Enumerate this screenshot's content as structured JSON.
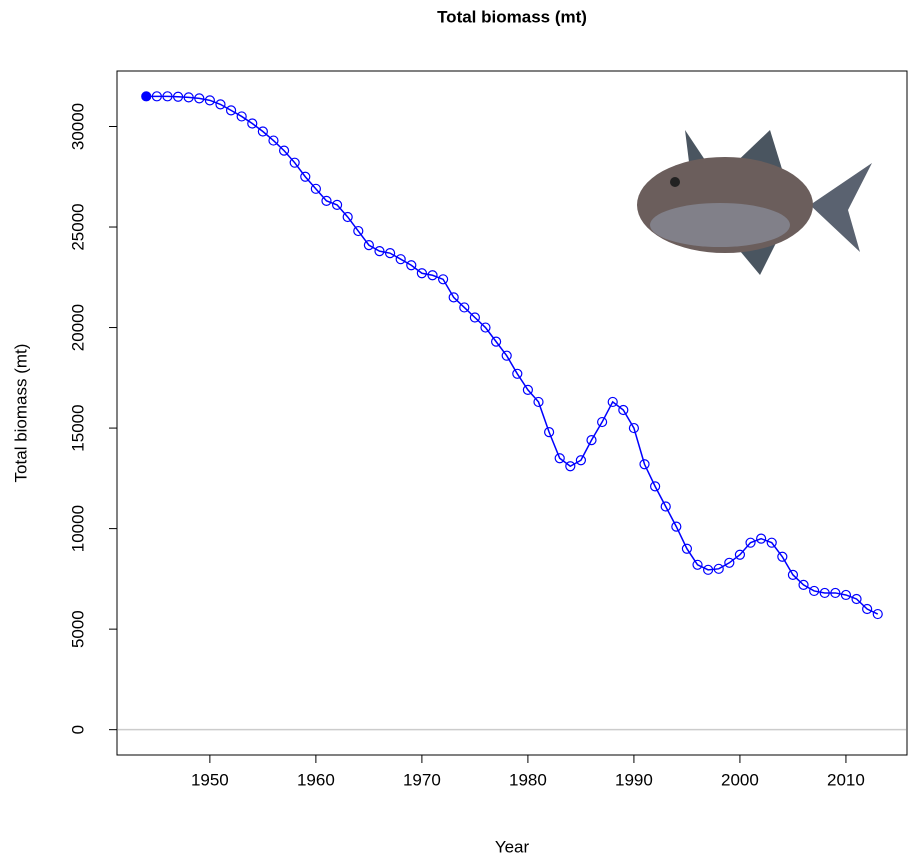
{
  "chart_data": {
    "type": "line",
    "title": "Total biomass (mt)",
    "x_label": "Year",
    "y_label": "Total biomass (mt)",
    "x": [
      1944,
      1945,
      1946,
      1947,
      1948,
      1949,
      1950,
      1951,
      1952,
      1953,
      1954,
      1955,
      1956,
      1957,
      1958,
      1959,
      1960,
      1961,
      1962,
      1963,
      1964,
      1965,
      1966,
      1967,
      1968,
      1969,
      1970,
      1971,
      1972,
      1973,
      1974,
      1975,
      1976,
      1977,
      1978,
      1979,
      1980,
      1981,
      1982,
      1983,
      1984,
      1985,
      1986,
      1987,
      1988,
      1989,
      1990,
      1991,
      1992,
      1993,
      1994,
      1995,
      1996,
      1997,
      1998,
      1999,
      2000,
      2001,
      2002,
      2003,
      2004,
      2005,
      2006,
      2007,
      2008,
      2009,
      2010,
      2011,
      2012,
      2013
    ],
    "series": [
      {
        "name": "Total biomass (mt)",
        "color": "#0000ff",
        "values": [
          31500,
          31500,
          31500,
          31480,
          31450,
          31400,
          31300,
          31100,
          30800,
          30500,
          30150,
          29750,
          29300,
          28800,
          28200,
          27500,
          26900,
          26300,
          26100,
          25500,
          24800,
          24100,
          23800,
          23700,
          23400,
          23100,
          22700,
          22600,
          22400,
          21500,
          21000,
          20500,
          20000,
          19300,
          18600,
          17700,
          16900,
          16300,
          14800,
          13500,
          13100,
          13400,
          14400,
          15300,
          16300,
          15900,
          15000,
          13200,
          12100,
          11100,
          10100,
          9000,
          8200,
          7950,
          8000,
          8300,
          8700,
          9300,
          9500,
          9300,
          8600,
          7700,
          7200,
          6900,
          6800,
          6800,
          6700,
          6500,
          6000,
          5750
        ]
      }
    ],
    "first_point_filled": true,
    "reference_line": 0,
    "xlim": [
      1941.24,
      2015.76
    ],
    "xticks": [
      1950,
      1960,
      1970,
      1980,
      1990,
      2000,
      2010
    ],
    "ylim": [
      -1260,
      32760
    ],
    "yticks": [
      0,
      5000,
      10000,
      15000,
      20000,
      25000,
      30000
    ]
  }
}
